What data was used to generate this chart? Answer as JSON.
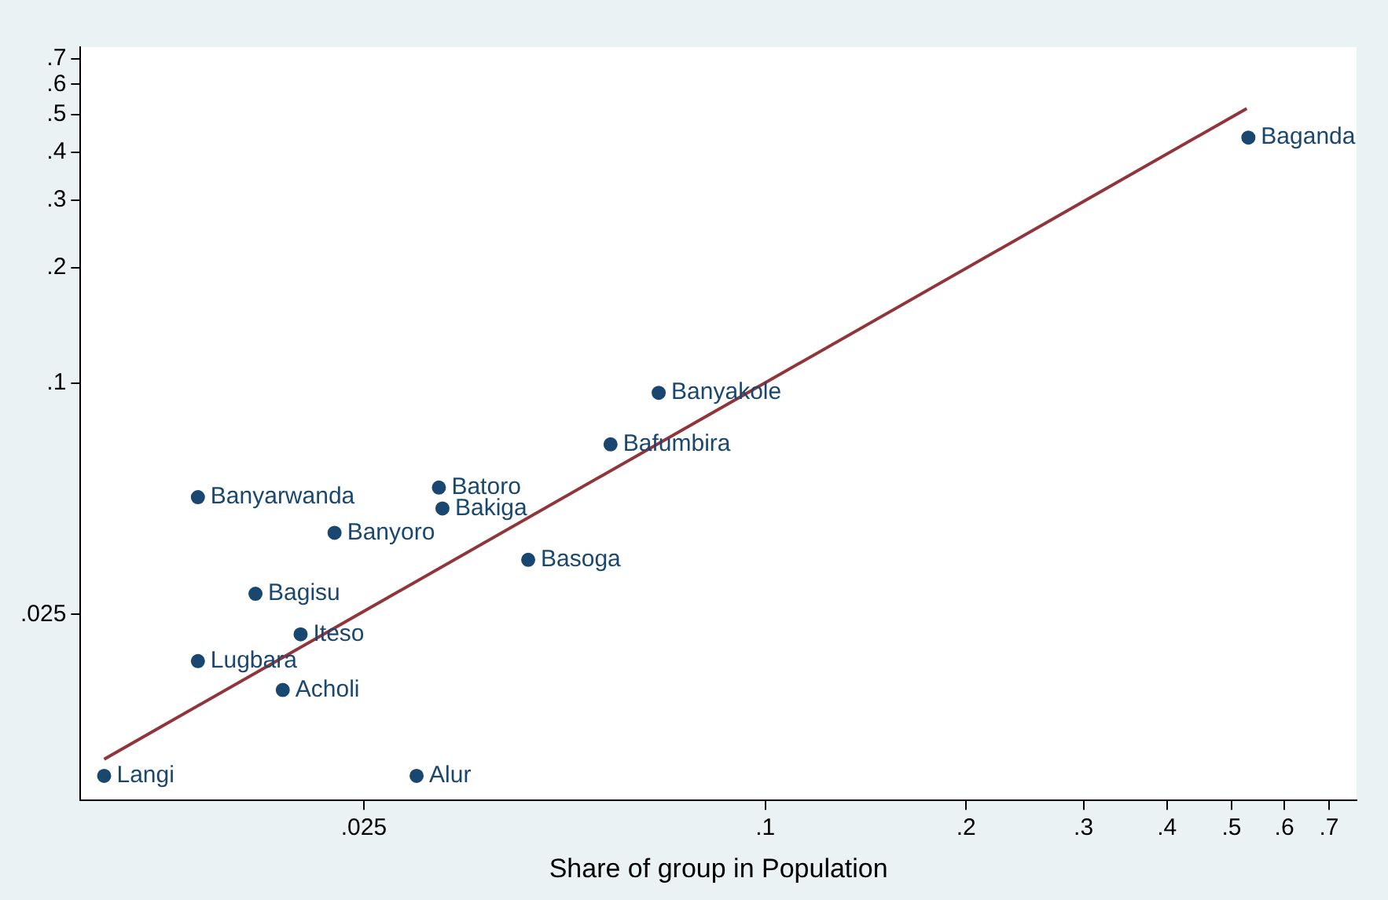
{
  "chart_data": {
    "type": "scatter",
    "xlabel": "Share of group in Population",
    "log": "xy",
    "grid": false,
    "legend": false,
    "marker": "circle",
    "xlim": [
      0.0094,
      0.77
    ],
    "ylim": [
      0.0082,
      0.75
    ],
    "xticks": [
      {
        "value": 0.025,
        "label": ".025"
      },
      {
        "value": 0.1,
        "label": ".1"
      },
      {
        "value": 0.2,
        "label": ".2"
      },
      {
        "value": 0.3,
        "label": ".3"
      },
      {
        "value": 0.4,
        "label": ".4"
      },
      {
        "value": 0.5,
        "label": ".5"
      },
      {
        "value": 0.6,
        "label": ".6"
      },
      {
        "value": 0.7,
        "label": ".7"
      }
    ],
    "yticks": [
      {
        "value": 0.025,
        "label": ".025"
      },
      {
        "value": 0.1,
        "label": ".1"
      },
      {
        "value": 0.2,
        "label": ".2"
      },
      {
        "value": 0.3,
        "label": ".3"
      },
      {
        "value": 0.4,
        "label": ".4"
      },
      {
        "value": 0.5,
        "label": ".5"
      },
      {
        "value": 0.6,
        "label": ".6"
      },
      {
        "value": 0.7,
        "label": ".7"
      }
    ],
    "series": [
      {
        "type": "scatter",
        "color": "#1a476f",
        "x": [
          0.0102,
          0.03,
          0.0189,
          0.0141,
          0.0201,
          0.0172,
          0.0226,
          0.0141,
          0.0324,
          0.0328,
          0.0441,
          0.0586,
          0.0692,
          0.53
        ],
        "values": [
          0.0095,
          0.0095,
          0.0159,
          0.0189,
          0.0222,
          0.0283,
          0.0408,
          0.0505,
          0.0535,
          0.0472,
          0.0347,
          0.0693,
          0.0944,
          0.436
        ]
      },
      {
        "type": "line",
        "color": "#90353b",
        "marker": "none",
        "x": [
          0.0102,
          0.527
        ],
        "values": [
          0.0105,
          0.519
        ]
      }
    ],
    "annotations": [
      {
        "text": "Langi",
        "x": 0.0102,
        "y": 0.0095
      },
      {
        "text": "Alur",
        "x": 0.03,
        "y": 0.0095
      },
      {
        "text": "Acholi",
        "x": 0.0189,
        "y": 0.0159
      },
      {
        "text": "Lugbara",
        "x": 0.0141,
        "y": 0.0189
      },
      {
        "text": "Iteso",
        "x": 0.0201,
        "y": 0.0222
      },
      {
        "text": "Bagisu",
        "x": 0.0172,
        "y": 0.0283
      },
      {
        "text": "Banyoro",
        "x": 0.0226,
        "y": 0.0408
      },
      {
        "text": "Banyarwanda",
        "x": 0.0141,
        "y": 0.0505
      },
      {
        "text": "Batoro",
        "x": 0.0324,
        "y": 0.0535
      },
      {
        "text": "Bakiga",
        "x": 0.0328,
        "y": 0.0472
      },
      {
        "text": "Basoga",
        "x": 0.0441,
        "y": 0.0347
      },
      {
        "text": "Bafumbira",
        "x": 0.0586,
        "y": 0.0693
      },
      {
        "text": "Banyakole",
        "x": 0.0692,
        "y": 0.0944
      },
      {
        "text": "Baganda",
        "x": 0.53,
        "y": 0.436
      }
    ]
  }
}
